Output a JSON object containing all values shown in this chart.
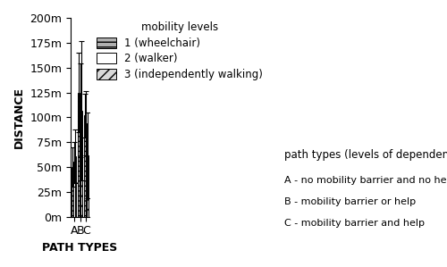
{
  "categories": [
    "A",
    "B",
    "C"
  ],
  "xlabel": "PATH TYPES",
  "ylabel": "DISTANCE",
  "ylim": [
    0,
    200
  ],
  "yticks": [
    0,
    25,
    50,
    75,
    100,
    125,
    150,
    175,
    200
  ],
  "ytick_labels": [
    "0m",
    "25m",
    "50m",
    "75m",
    "100m",
    "125m",
    "150m",
    "175m",
    "200m"
  ],
  "bar_width": 0.25,
  "series": [
    {
      "label": "1 (wheelchair)",
      "values": [
        50,
        125,
        102
      ],
      "errors": [
        20,
        40,
        22
      ],
      "facecolor": "#b0b0b0",
      "hatch": "---",
      "edgecolor": "#000000"
    },
    {
      "label": "2 (walker)",
      "values": [
        55,
        107,
        94
      ],
      "errors": [
        20,
        47,
        32
      ],
      "facecolor": "#ffffff",
      "hatch": "",
      "edgecolor": "#000000"
    },
    {
      "label": "3 (independently walking)",
      "values": [
        61,
        107,
        62
      ],
      "errors": [
        27,
        70,
        43
      ],
      "facecolor": "#d8d8d8",
      "hatch": "///",
      "edgecolor": "#000000"
    }
  ],
  "legend_title": "mobility levels",
  "legend_note1": "path types (levels of dependence)",
  "legend_note2": "A - no mobility barrier and no help",
  "legend_note3": "B - mobility barrier or help",
  "legend_note4": "C - mobility barrier and help",
  "background_color": "#ffffff",
  "title_fontsize": 9,
  "axis_fontsize": 9,
  "legend_fontsize": 8.5
}
